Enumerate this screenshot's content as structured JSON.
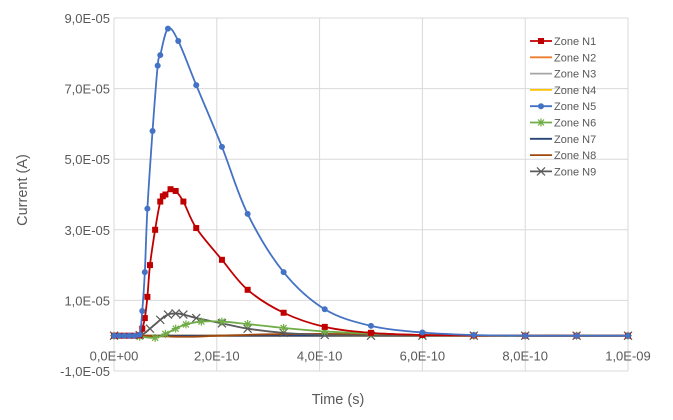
{
  "chart_data": {
    "type": "line",
    "title": "",
    "xlabel": "Time (s)",
    "ylabel": "Current (A)",
    "xlim": [
      0,
      1e-09
    ],
    "ylim": [
      -1e-05,
      9e-05
    ],
    "x_tick_labels": [
      "0,0E+00",
      "2,0E-10",
      "4,0E-10",
      "6,0E-10",
      "8,0E-10",
      "1,0E-09"
    ],
    "y_tick_labels": [
      "9,0E-05",
      "7,0E-05",
      "5,0E-05",
      "3,0E-05",
      "1,0E-05",
      "-1,0E-05"
    ],
    "grid": "vertical and horizontal",
    "legend_position": "right",
    "series": [
      {
        "name": "Zone N1",
        "color": "#c00000",
        "marker": "square",
        "x": [
          0,
          1e-11,
          2e-11,
          3e-11,
          4e-11,
          5e-11,
          5.5e-11,
          6e-11,
          6.5e-11,
          7e-11,
          8e-11,
          9e-11,
          9.5e-11,
          1e-10,
          1.1e-10,
          1.2e-10,
          1.35e-10,
          1.6e-10,
          2.1e-10,
          2.6e-10,
          3.3e-10,
          4.1e-10,
          5e-10,
          6e-10,
          7e-10,
          8e-10,
          9e-10,
          1e-09
        ],
        "y": [
          0,
          0,
          0,
          0,
          0,
          1e-07,
          2e-06,
          5e-06,
          1.1e-05,
          2e-05,
          3e-05,
          3.8e-05,
          3.95e-05,
          4e-05,
          4.15e-05,
          4.1e-05,
          3.8e-05,
          3.05e-05,
          2.15e-05,
          1.3e-05,
          6.5e-06,
          2.5e-06,
          8e-07,
          2e-07,
          5e-08,
          0,
          0,
          0
        ]
      },
      {
        "name": "Zone N2",
        "color": "#ed7d31",
        "marker": "none",
        "x": [
          0,
          5e-11,
          1e-10,
          2e-10,
          4e-10,
          6e-10,
          8e-10,
          1e-09
        ],
        "y": [
          0,
          0,
          0,
          0,
          0,
          0,
          0,
          0
        ]
      },
      {
        "name": "Zone N3",
        "color": "#a5a5a5",
        "marker": "none",
        "x": [
          0,
          5e-11,
          1e-10,
          2e-10,
          4e-10,
          6e-10,
          8e-10,
          1e-09
        ],
        "y": [
          0,
          0,
          0,
          0,
          0,
          0,
          0,
          0
        ]
      },
      {
        "name": "Zone N4",
        "color": "#ffc000",
        "marker": "none",
        "x": [
          0,
          5e-11,
          1e-10,
          2e-10,
          4e-10,
          6e-10,
          8e-10,
          1e-09
        ],
        "y": [
          0,
          0,
          0,
          0,
          0,
          0,
          0,
          0
        ]
      },
      {
        "name": "Zone N5",
        "color": "#4472c4",
        "marker": "circle",
        "x": [
          0,
          1e-11,
          2e-11,
          3e-11,
          4e-11,
          5e-11,
          5.5e-11,
          6e-11,
          6.5e-11,
          7.5e-11,
          8.5e-11,
          9e-11,
          1.05e-10,
          1.25e-10,
          1.6e-10,
          2.1e-10,
          2.6e-10,
          3.3e-10,
          4.1e-10,
          5e-10,
          6e-10,
          7e-10,
          8e-10,
          9e-10,
          1e-09
        ],
        "y": [
          0,
          0,
          0,
          0,
          0,
          3e-07,
          7e-06,
          1.8e-05,
          3.6e-05,
          5.8e-05,
          7.65e-05,
          7.95e-05,
          8.7e-05,
          8.35e-05,
          7.1e-05,
          5.35e-05,
          3.45e-05,
          1.8e-05,
          7.5e-06,
          2.8e-06,
          9e-07,
          2e-07,
          0,
          0,
          0
        ]
      },
      {
        "name": "Zone N6",
        "color": "#70ad47",
        "marker": "star",
        "x": [
          0,
          5e-11,
          8e-11,
          1e-10,
          1.2e-10,
          1.4e-10,
          1.7e-10,
          2.1e-10,
          2.6e-10,
          3.3e-10,
          4.1e-10,
          5e-10,
          6e-10,
          7e-10,
          8e-10,
          9e-10,
          1e-09
        ],
        "y": [
          0,
          -3e-07,
          -6e-07,
          5e-07,
          2e-06,
          3.2e-06,
          4e-06,
          4e-06,
          3.3e-06,
          2.2e-06,
          1.2e-06,
          6e-07,
          2e-07,
          0,
          0,
          0,
          0
        ]
      },
      {
        "name": "Zone N7",
        "color": "#264478",
        "marker": "none",
        "x": [
          0,
          5e-11,
          1e-10,
          2e-10,
          3e-10,
          4e-10,
          6e-10,
          8e-10,
          1e-09
        ],
        "y": [
          0,
          0,
          0,
          0,
          0,
          0,
          0,
          0,
          0
        ]
      },
      {
        "name": "Zone N8",
        "color": "#9e480e",
        "marker": "none",
        "x": [
          0,
          5e-11,
          1e-10,
          1.5e-10,
          2e-10,
          2.5e-10,
          3e-10,
          4e-10,
          5e-10,
          6e-10,
          8e-10,
          1e-09
        ],
        "y": [
          0,
          0,
          -2e-07,
          -3e-07,
          0,
          2e-07,
          4e-07,
          5e-07,
          4e-07,
          2e-07,
          0,
          0
        ]
      },
      {
        "name": "Zone N9",
        "color": "#5a5a5a",
        "marker": "x",
        "x": [
          0,
          5e-11,
          7e-11,
          9e-11,
          1.05e-10,
          1.2e-10,
          1.35e-10,
          1.6e-10,
          2.1e-10,
          2.6e-10,
          3.3e-10,
          4.1e-10,
          5e-10,
          6e-10,
          7e-10,
          8e-10,
          9e-10,
          1e-09
        ],
        "y": [
          0,
          2e-07,
          2e-06,
          4.5e-06,
          6e-06,
          6.3e-06,
          6e-06,
          5e-06,
          3.5e-06,
          2e-06,
          8e-07,
          2e-07,
          0,
          0,
          0,
          0,
          0,
          0
        ]
      }
    ]
  }
}
